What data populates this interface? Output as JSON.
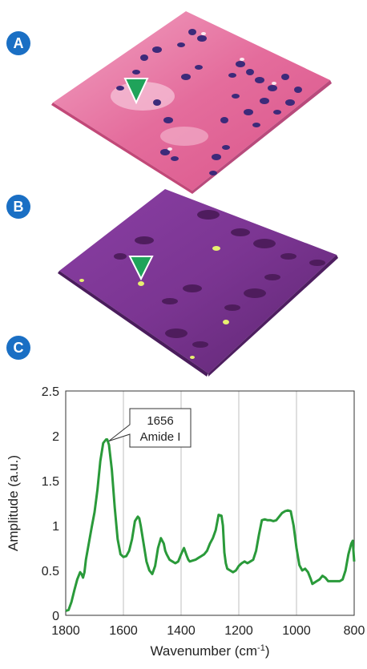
{
  "panels": {
    "a": {
      "label": "A"
    },
    "b": {
      "label": "B"
    },
    "c": {
      "label": "C"
    }
  },
  "colors": {
    "badge": "#1a6fc4",
    "marker": "#1fa35a",
    "tissue_he": "#e87aa6",
    "tissue_ir": "#7a3590",
    "series": "#2a9a3a"
  },
  "icons": {
    "marker": "triangle-marker-icon"
  },
  "chart_data": {
    "type": "line",
    "xlabel": "Wavenumber (cm-1)",
    "xlabel_main": "Wavenumber (cm",
    "xlabel_sup": "-1",
    "xlabel_end": ")",
    "ylabel": "Amplitude (a.u.)",
    "xlim": [
      1800,
      800
    ],
    "ylim": [
      0,
      2.5
    ],
    "x_reversed": true,
    "xticks": [
      1800,
      1600,
      1400,
      1200,
      1000,
      800
    ],
    "yticks": [
      0,
      0.5,
      1,
      1.5,
      2,
      2.5
    ],
    "ytick_labels": [
      "0",
      "0.5",
      "1",
      "1.5",
      "2",
      "2.5"
    ],
    "grid": "vertical",
    "annotation": {
      "line1": "1656",
      "line2": "Amide I",
      "x": 1656,
      "y": 1.96
    },
    "series": [
      {
        "x": [
          1800,
          1790,
          1780,
          1770,
          1760,
          1750,
          1745,
          1740,
          1735,
          1730,
          1720,
          1710,
          1700,
          1690,
          1680,
          1670,
          1660,
          1656,
          1650,
          1640,
          1630,
          1620,
          1610,
          1600,
          1590,
          1580,
          1570,
          1560,
          1550,
          1545,
          1540,
          1530,
          1520,
          1510,
          1500,
          1490,
          1480,
          1470,
          1460,
          1455,
          1450,
          1440,
          1430,
          1420,
          1410,
          1400,
          1390,
          1380,
          1375,
          1370,
          1360,
          1350,
          1340,
          1330,
          1320,
          1310,
          1300,
          1290,
          1280,
          1270,
          1260,
          1255,
          1250,
          1245,
          1240,
          1230,
          1220,
          1210,
          1200,
          1190,
          1180,
          1170,
          1160,
          1150,
          1140,
          1130,
          1120,
          1110,
          1100,
          1090,
          1080,
          1070,
          1060,
          1050,
          1040,
          1030,
          1020,
          1010,
          1000,
          990,
          980,
          970,
          960,
          950,
          945,
          940,
          930,
          920,
          910,
          900,
          890,
          880,
          870,
          860,
          850,
          840,
          830,
          820,
          810,
          805,
          800
        ],
        "y": [
          0.05,
          0.06,
          0.15,
          0.28,
          0.4,
          0.48,
          0.46,
          0.42,
          0.48,
          0.62,
          0.8,
          0.98,
          1.15,
          1.4,
          1.72,
          1.92,
          1.96,
          1.96,
          1.9,
          1.62,
          1.2,
          0.85,
          0.68,
          0.65,
          0.66,
          0.72,
          0.85,
          1.05,
          1.1,
          1.08,
          1.0,
          0.8,
          0.6,
          0.5,
          0.46,
          0.55,
          0.75,
          0.86,
          0.8,
          0.72,
          0.68,
          0.62,
          0.6,
          0.58,
          0.6,
          0.68,
          0.75,
          0.66,
          0.62,
          0.6,
          0.61,
          0.62,
          0.64,
          0.66,
          0.68,
          0.72,
          0.8,
          0.86,
          0.95,
          1.12,
          1.11,
          1.0,
          0.7,
          0.58,
          0.52,
          0.5,
          0.48,
          0.5,
          0.55,
          0.58,
          0.6,
          0.58,
          0.6,
          0.62,
          0.72,
          0.9,
          1.06,
          1.07,
          1.06,
          1.06,
          1.05,
          1.06,
          1.1,
          1.14,
          1.16,
          1.17,
          1.16,
          1.0,
          0.75,
          0.56,
          0.5,
          0.52,
          0.48,
          0.4,
          0.35,
          0.36,
          0.38,
          0.4,
          0.44,
          0.42,
          0.38,
          0.38,
          0.38,
          0.38,
          0.38,
          0.4,
          0.5,
          0.68,
          0.8,
          0.83,
          0.6
        ]
      }
    ]
  }
}
